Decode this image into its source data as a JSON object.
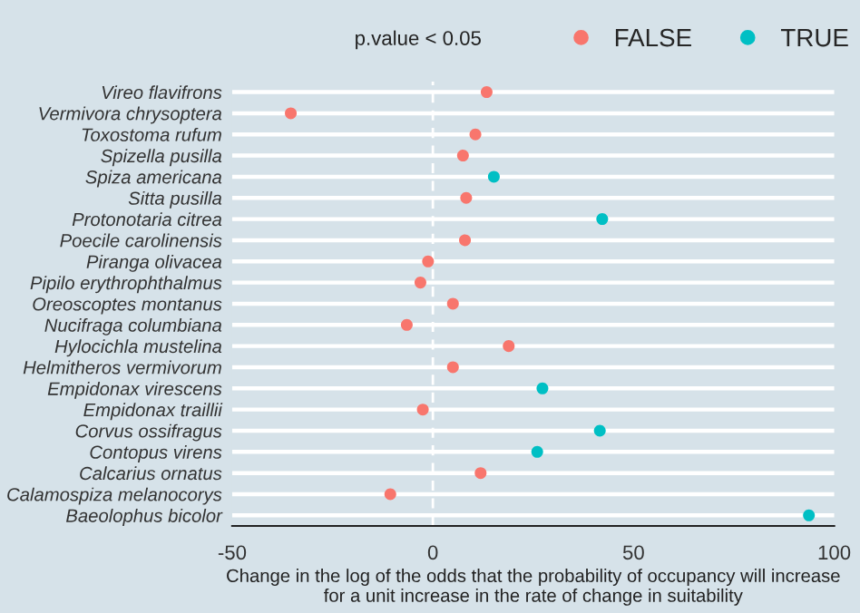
{
  "chart_data": {
    "type": "scatter",
    "orientation": "horizontal",
    "xlabel": "Change in the log of the odds that the probability of occupancy will increase\nfor a unit increase in the rate of change in suitability",
    "legend_title": "p.value < 0.05",
    "legend": "top",
    "grid": "y",
    "marker": "circle",
    "categories": [
      "Vireo flavifrons",
      "Vermivora chrysoptera",
      "Toxostoma rufum",
      "Spizella pusilla",
      "Spiza americana",
      "Sitta pusilla",
      "Protonotaria citrea",
      "Poecile carolinensis",
      "Piranga olivacea",
      "Pipilo erythrophthalmus",
      "Oreoscoptes montanus",
      "Nucifraga columbiana",
      "Hylocichla mustelina",
      "Helmitheros vermivorum",
      "Empidonax virescens",
      "Empidonax traillii",
      "Corvus ossifragus",
      "Contopus virens",
      "Calcarius ornatus",
      "Calamospiza melanocorys",
      "Baeolophus bicolor"
    ],
    "series": [
      {
        "name": "FALSE",
        "color": "#f8766d",
        "values": [
          13.4,
          -35.4,
          10.6,
          7.5,
          null,
          8.3,
          null,
          8.0,
          -1.2,
          -3.1,
          5.0,
          -6.5,
          18.9,
          5.0,
          null,
          -2.5,
          null,
          null,
          11.9,
          -10.6,
          null
        ]
      },
      {
        "name": "TRUE",
        "color": "#00bfc4",
        "values": [
          null,
          null,
          null,
          null,
          15.2,
          null,
          42.2,
          null,
          null,
          null,
          null,
          null,
          null,
          null,
          27.3,
          null,
          41.6,
          26.0,
          null,
          null,
          93.7
        ]
      }
    ],
    "xlim": [
      -50,
      100
    ],
    "xticks": [
      -50,
      0,
      50,
      100
    ],
    "ref_lines": [
      {
        "axis": "x",
        "value": 0,
        "color": "#ffffff",
        "line_style": "dashed"
      }
    ]
  }
}
